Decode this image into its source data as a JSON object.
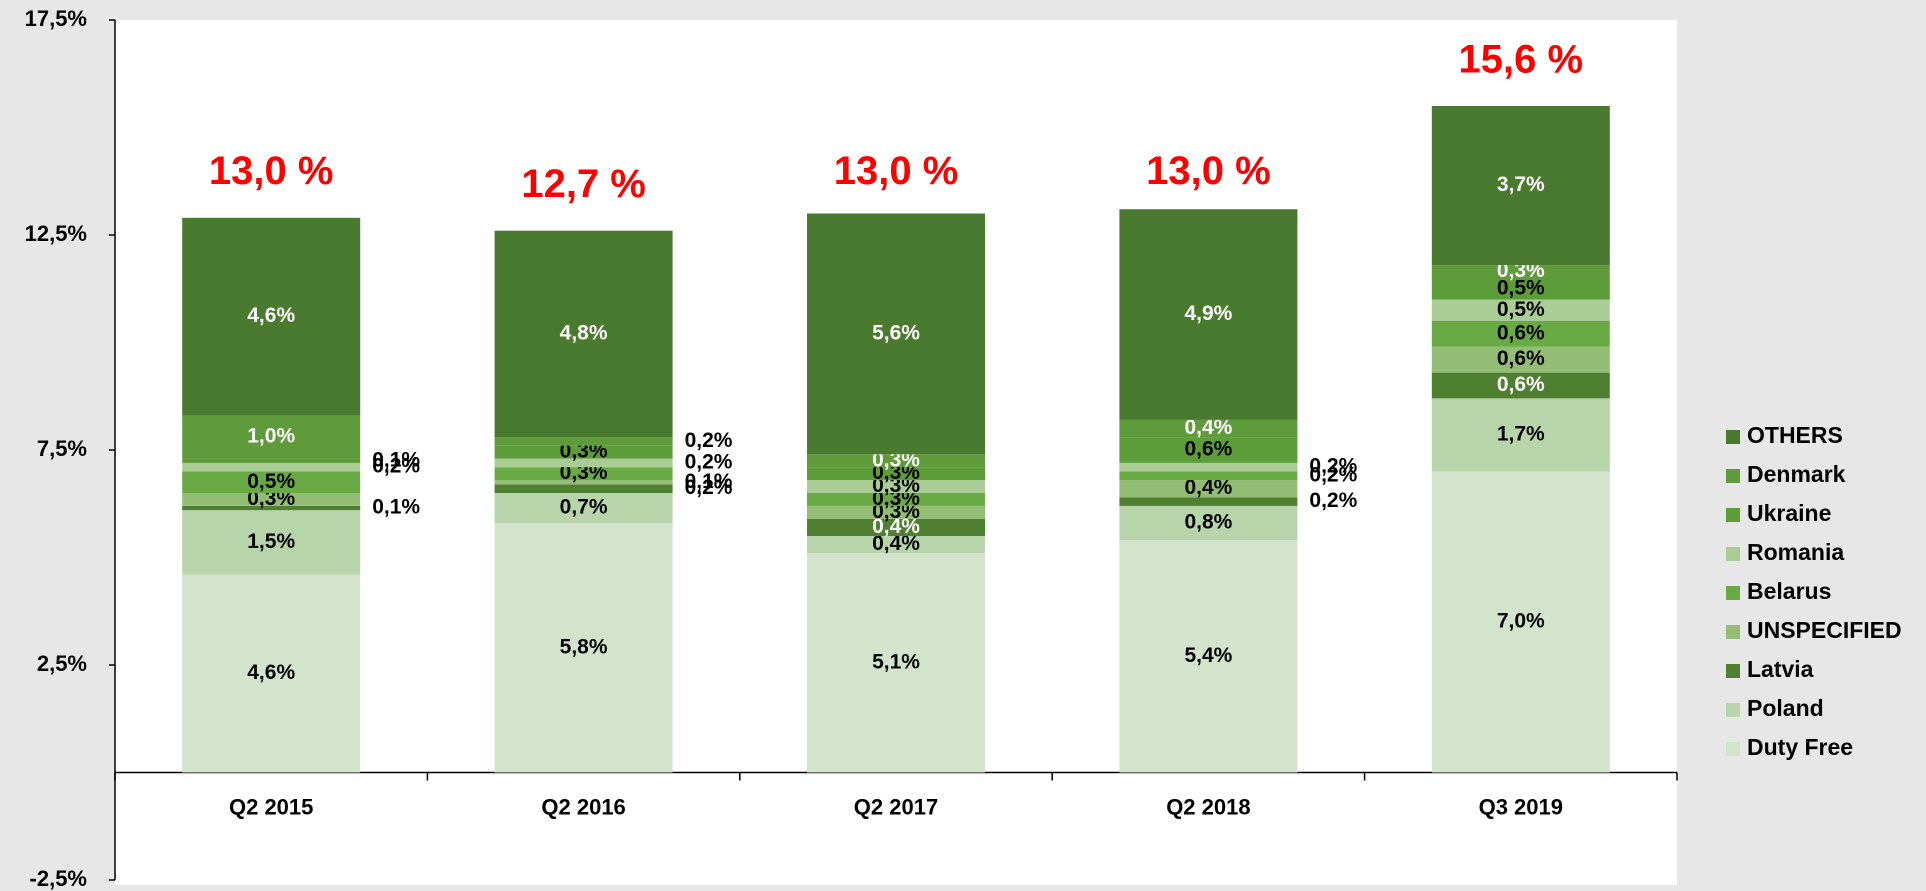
{
  "chart_data": {
    "type": "bar",
    "stacked": true,
    "categories": [
      "Q2 2015",
      "Q2 2016",
      "Q2 2017",
      "Q2 2018",
      "Q3 2019"
    ],
    "series": [
      {
        "name": "Duty Free",
        "color": "#d3e3cc",
        "label_color": "#000000",
        "values": [
          4.6,
          5.8,
          5.1,
          5.4,
          7.0
        ],
        "value_labels": [
          "4,6%",
          "5,8%",
          "5,1%",
          "5,4%",
          "7,0%"
        ]
      },
      {
        "name": "Poland",
        "color": "#b8d4aa",
        "label_color": "#000000",
        "values": [
          1.5,
          0.7,
          0.4,
          0.8,
          1.7
        ],
        "value_labels": [
          "1,5%",
          "0,7%",
          "0,4%",
          "0,8%",
          "1,7%"
        ]
      },
      {
        "name": "Latvia",
        "color": "#4f7f31",
        "label_color": "#ffffff",
        "values": [
          0.1,
          0.2,
          0.4,
          0.2,
          0.6
        ],
        "value_labels": [
          "0,1%",
          "0,2%",
          "0,4%",
          "0,2%",
          "0,6%"
        ]
      },
      {
        "name": "UNSPECIFIED",
        "color": "#93bd75",
        "label_color": "#000000",
        "values": [
          0.3,
          0.1,
          0.3,
          0.4,
          0.6
        ],
        "value_labels": [
          "0,3%",
          "0,1%",
          "0,3%",
          "0,4%",
          "0,6%"
        ]
      },
      {
        "name": "Belarus",
        "color": "#6aaa45",
        "label_color": "#000000",
        "values": [
          0.5,
          0.3,
          0.3,
          0.2,
          0.6
        ],
        "value_labels": [
          "0,5%",
          "0,3%",
          "0,3%",
          "0,2%",
          "0,6%"
        ]
      },
      {
        "name": "Romania",
        "color": "#a9cd95",
        "label_color": "#000000",
        "values": [
          0.2,
          0.2,
          0.3,
          0.2,
          0.5
        ],
        "value_labels": [
          "0,2%",
          "0,2%",
          "0,3%",
          "0,2%",
          "0,5%"
        ]
      },
      {
        "name": "Ukraine",
        "color": "#5c9d39",
        "label_color": "#000000",
        "values": [
          0.1,
          0.3,
          0.3,
          0.6,
          0.5
        ],
        "value_labels": [
          "0,1%",
          "0,3%",
          "0,3%",
          "0,6%",
          "0,5%"
        ]
      },
      {
        "name": "Denmark",
        "color": "#5f9a3b",
        "label_color": "#ffffff",
        "values": [
          1.0,
          0.2,
          0.3,
          0.4,
          0.3
        ],
        "value_labels": [
          "1,0%",
          "0,2%",
          "0,3%",
          "0,4%",
          "0,3%"
        ]
      },
      {
        "name": "OTHERS",
        "color": "#4a7a2f",
        "label_color": "#ffffff",
        "values": [
          4.6,
          4.8,
          5.6,
          4.9,
          3.7
        ],
        "value_labels": [
          "4,6%",
          "4,8%",
          "5,6%",
          "4,9%",
          "3,7%"
        ]
      }
    ],
    "totals": [
      13.0,
      12.7,
      13.0,
      13.0,
      15.6
    ],
    "total_labels": [
      "13,0 %",
      "12,7 %",
      "13,0 %",
      "13,0 %",
      "15,6 %"
    ],
    "ylim": [
      -2.5,
      17.5
    ],
    "yticks": [
      {
        "value": -2.5,
        "label": "-2,5%"
      },
      {
        "value": 2.5,
        "label": "2,5%"
      },
      {
        "value": 7.5,
        "label": "7,5%"
      },
      {
        "value": 12.5,
        "label": "12,5%"
      },
      {
        "value": 17.5,
        "label": "17,5%"
      }
    ],
    "legend": "right",
    "grid": false
  }
}
